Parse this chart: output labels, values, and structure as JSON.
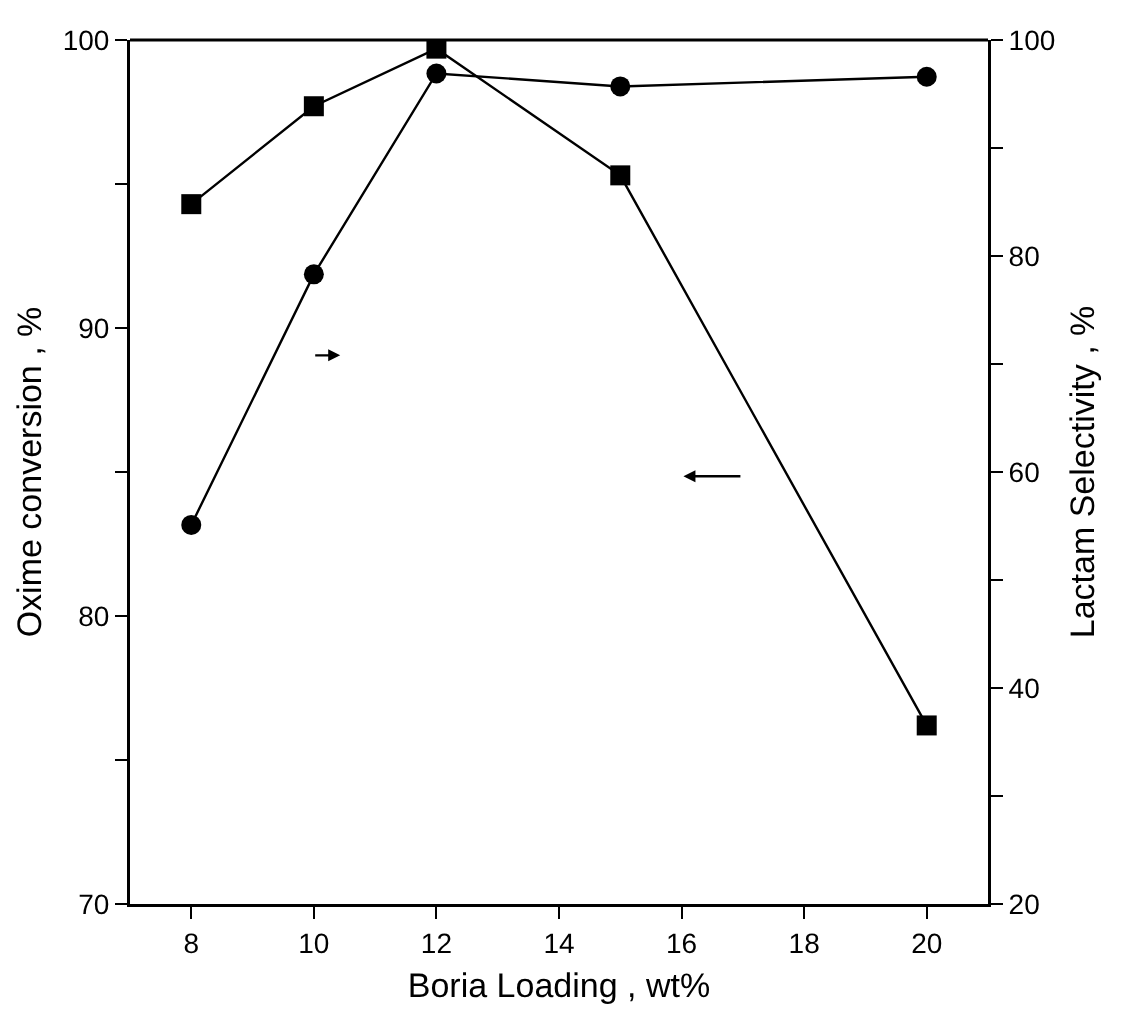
{
  "chart_data": {
    "type": "line",
    "xlabel": "Boria Loading , wt%",
    "ylabel": "Oxime conversion , %",
    "y2label": "Lactam Selectivity , %",
    "x": [
      8,
      10,
      12,
      15,
      20
    ],
    "series": [
      {
        "color": "#000000",
        "marker": "square",
        "values": [
          94.3,
          97.7,
          99.7,
          95.3,
          76.2
        ]
      },
      {
        "color": "#000000",
        "marker": "circle",
        "axis": "y2",
        "values": [
          55.1,
          78.3,
          96.9,
          95.7,
          96.6
        ]
      }
    ],
    "xlim": [
      7,
      21
    ],
    "xticks": [
      8,
      10,
      12,
      14,
      16,
      18,
      20
    ],
    "ylim": [
      70,
      100
    ],
    "yticks": [
      70,
      {
        "value": 75,
        "label": null
      },
      80,
      {
        "value": 85,
        "label": null
      },
      90,
      {
        "value": 95,
        "label": null
      },
      100
    ],
    "y2lim": [
      20,
      100
    ],
    "y2ticks": [
      20,
      {
        "value": 30,
        "label": null
      },
      40,
      {
        "value": 50,
        "label": null
      },
      60,
      {
        "value": 70,
        "label": null
      },
      80,
      {
        "value": 90,
        "label": null
      },
      100
    ],
    "grid": false,
    "line_style": "solid"
  }
}
